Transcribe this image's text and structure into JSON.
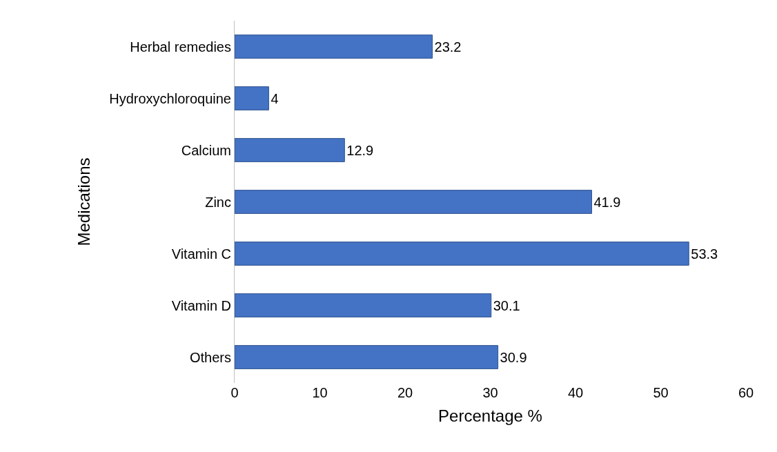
{
  "chart_data": {
    "type": "bar",
    "orientation": "horizontal",
    "xlabel": "Percentage %",
    "ylabel": "Medications",
    "categories": [
      "Herbal remedies",
      "Hydroxychloroquine",
      "Calcium",
      "Zinc",
      "Vitamin C",
      "Vitamin D",
      "Others"
    ],
    "values": [
      23.2,
      4,
      12.9,
      41.9,
      53.3,
      30.1,
      30.9
    ],
    "color": "#4472c4",
    "xlim": [
      0,
      60
    ],
    "xticks": [
      0,
      10,
      20,
      30,
      40,
      50,
      60
    ],
    "data_labels": true
  }
}
